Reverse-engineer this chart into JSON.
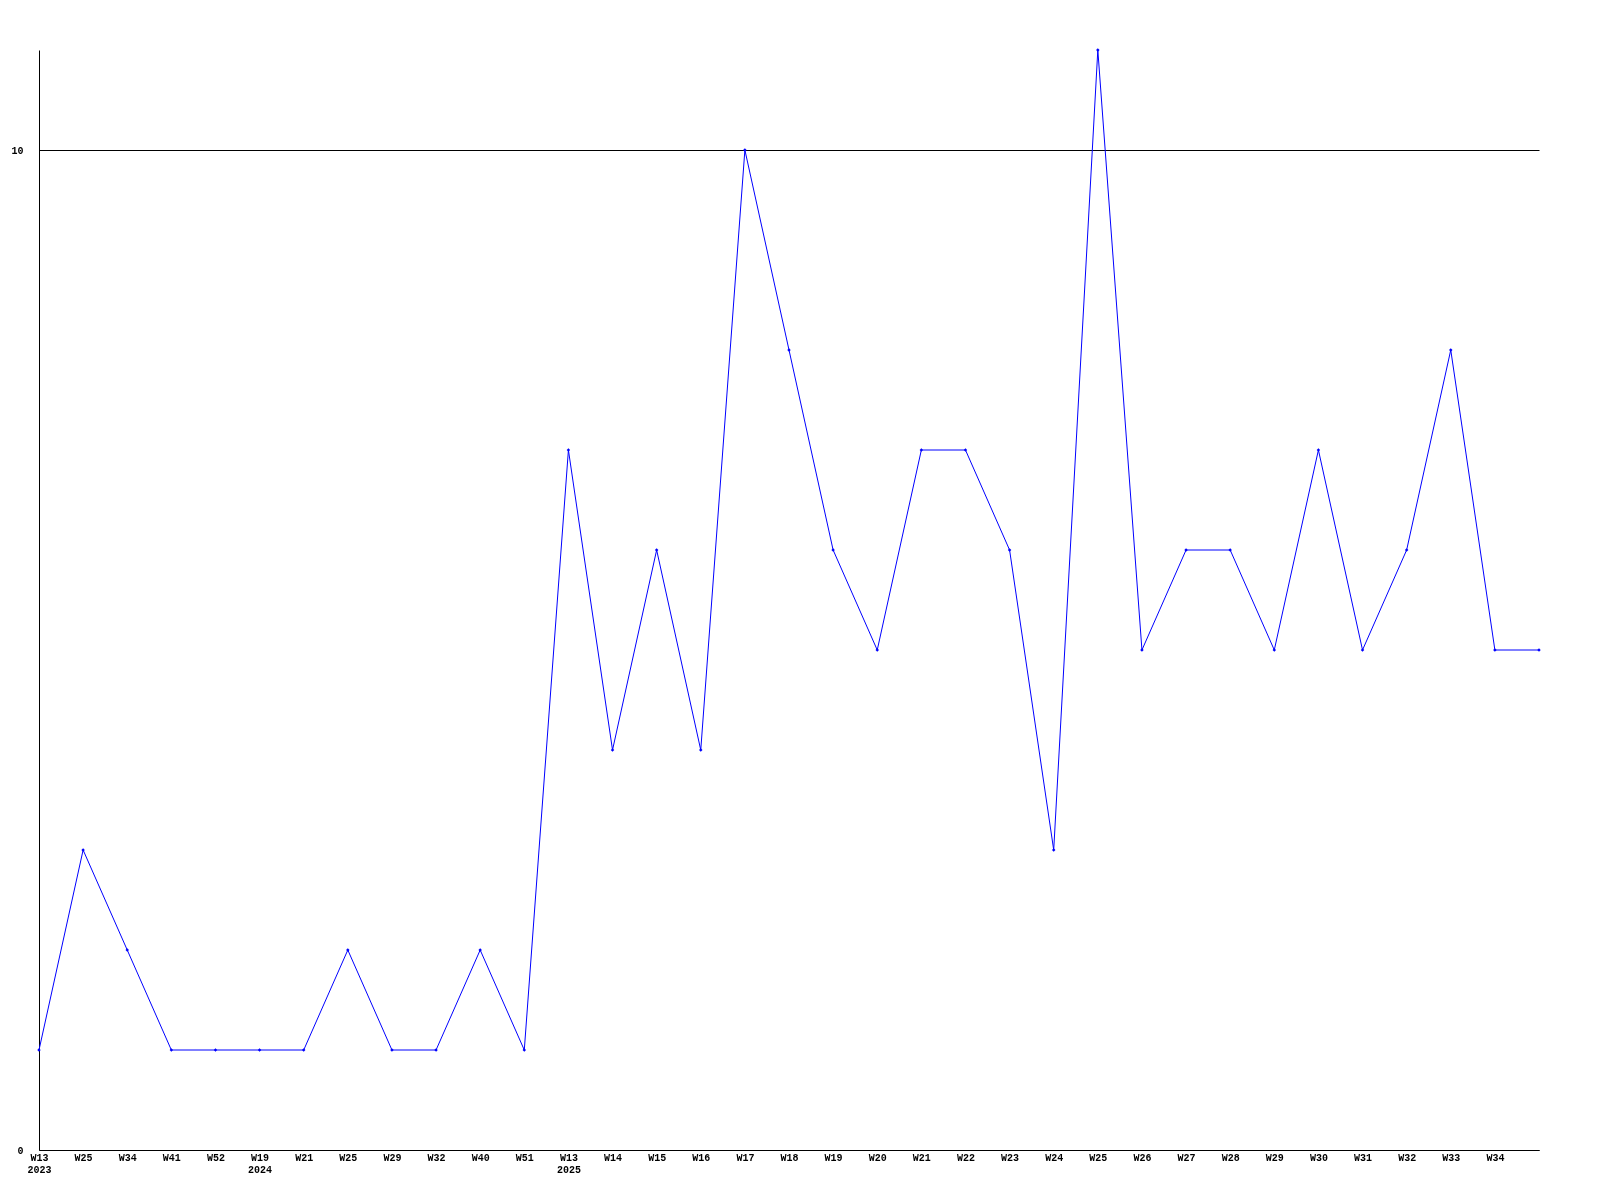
{
  "chart_data": {
    "type": "line",
    "categories": [
      "W13\n2023",
      "W25",
      "W34",
      "W41",
      "W52",
      "W19\n2024",
      "W21",
      "W25",
      "W29",
      "W32",
      "W40",
      "W51",
      "W13\n2025",
      "W14",
      "W15",
      "W16",
      "W17",
      "W18",
      "W19",
      "W20",
      "W21",
      "W22",
      "W23",
      "W24",
      "W25",
      "W26",
      "W27",
      "W28",
      "W29",
      "W30",
      "W31",
      "W32",
      "W33",
      "W34",
      null
    ],
    "series": [
      {
        "color": "#0000ff",
        "values": [
          1,
          3,
          2,
          1,
          1,
          1,
          1,
          2,
          1,
          1,
          2,
          1,
          7,
          4,
          6,
          4,
          10,
          8,
          6,
          5,
          7,
          7,
          6,
          3,
          11,
          5,
          6,
          6,
          5,
          7,
          5,
          6,
          8,
          5,
          5
        ]
      }
    ],
    "ylim": [
      0,
      11
    ],
    "yticks": [
      0,
      10
    ],
    "grid": "y",
    "marker": "diamond",
    "line_style": "solid",
    "legend": false
  }
}
